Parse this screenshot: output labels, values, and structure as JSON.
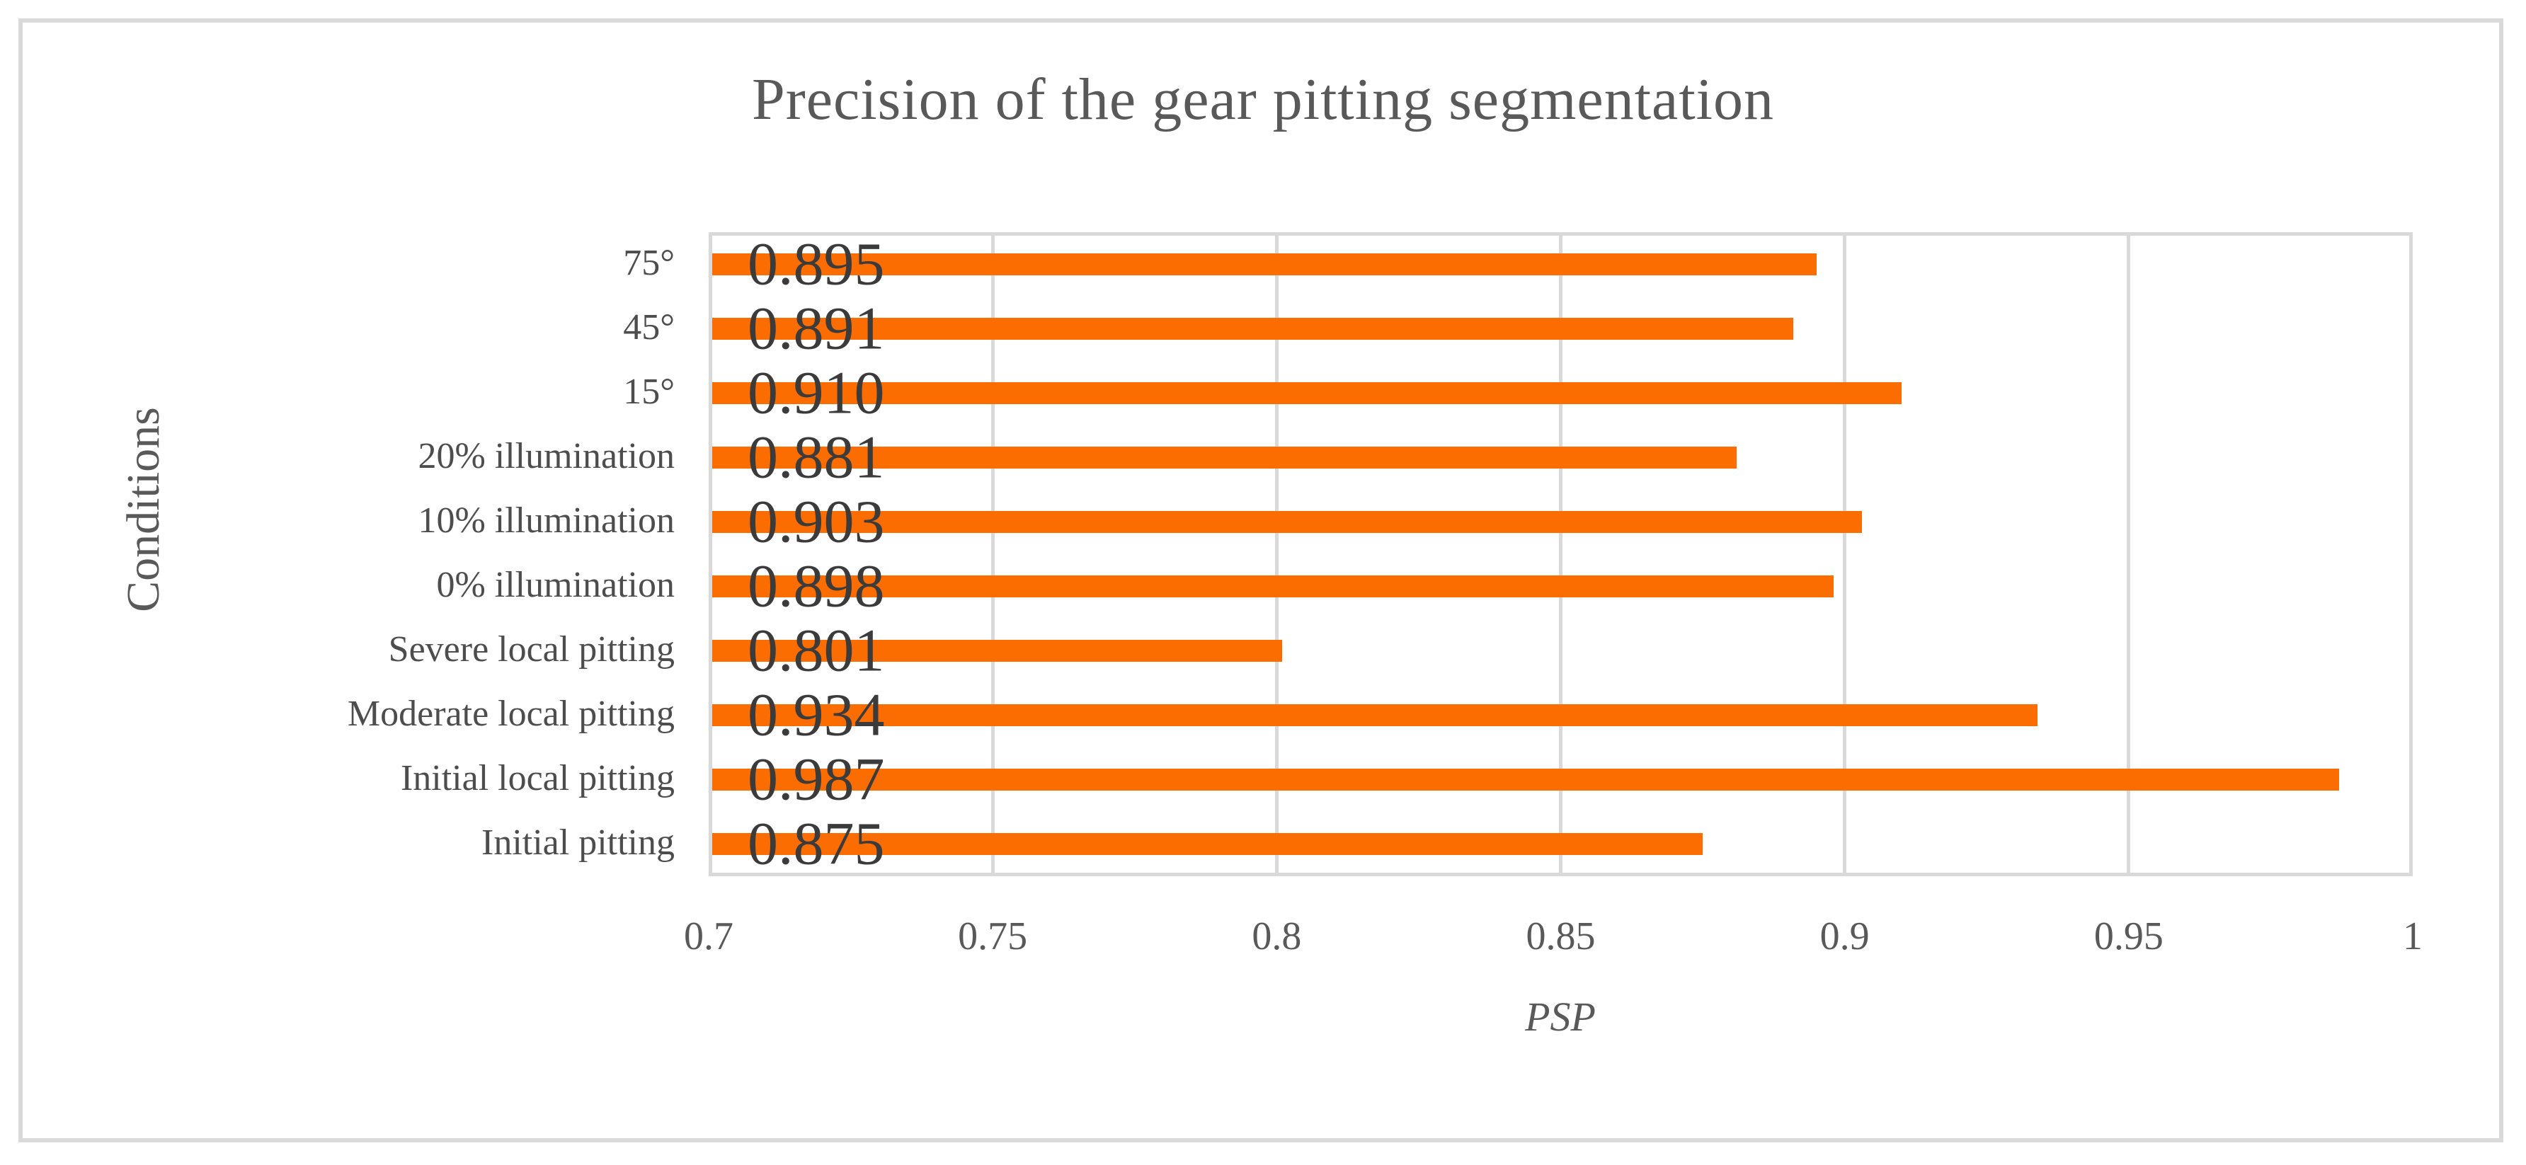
{
  "chart_data": {
    "type": "bar",
    "orientation": "horizontal",
    "title": "Precision of the gear pitting segmentation",
    "xlabel": "PSP",
    "ylabel": "Conditions",
    "categories": [
      "75°",
      "45°",
      "15°",
      "20% illumination",
      "10% illumination",
      "0% illumination",
      "Severe local pitting",
      "Moderate local pitting",
      "Initial local pitting",
      "Initial pitting"
    ],
    "values": [
      0.895,
      0.891,
      0.91,
      0.881,
      0.903,
      0.898,
      0.801,
      0.934,
      0.987,
      0.875
    ],
    "data_labels": [
      "0.895",
      "0.891",
      "0.910",
      "0.881",
      "0.903",
      "0.898",
      "0.801",
      "0.934",
      "0.987",
      "0.875"
    ],
    "xlim": [
      0.7,
      1.0
    ],
    "xticks": [
      0.7,
      0.75,
      0.8,
      0.85,
      0.9,
      0.95,
      1
    ],
    "xtick_labels": [
      "0.7",
      "0.75",
      "0.8",
      "0.85",
      "0.9",
      "0.95",
      "1"
    ],
    "grid": true,
    "legend": false,
    "colors": {
      "bar": "#FB6D01",
      "grid": "#D9D9D9",
      "figure_border": "#D9D9D9",
      "title_text": "#595959",
      "value_label_text": "#3B3B3B",
      "category_text": "#4D4D4D",
      "tick_text": "#595959"
    }
  }
}
